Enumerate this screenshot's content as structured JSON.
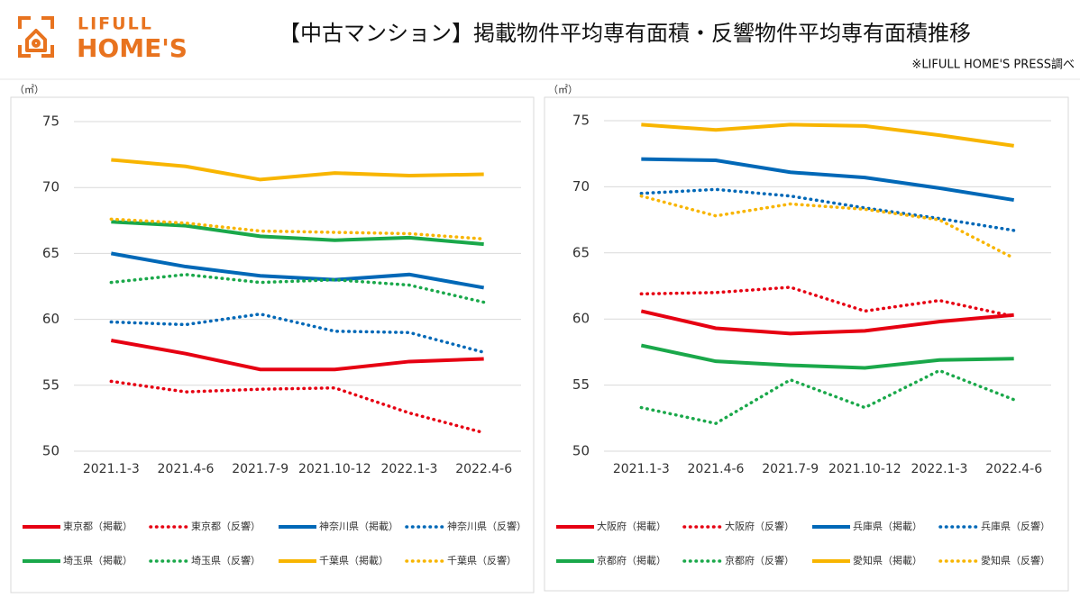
{
  "header": {
    "logo_top": "LIFULL",
    "logo_bottom": "HOME'S",
    "title": "【中古マンション】掲載物件平均専有面積・反響物件平均専有面積推移",
    "source": "※LIFULL HOME'S PRESS調べ"
  },
  "chart_data": [
    {
      "type": "line",
      "y_label": "（㎡）",
      "categories": [
        "2021.1-3",
        "2021.4-6",
        "2021.7-9",
        "2021.10-12",
        "2022.1-3",
        "2022.4-6"
      ],
      "ylim": [
        50,
        75
      ],
      "yticks": [
        50,
        55,
        60,
        65,
        70,
        75
      ],
      "grid": true,
      "series": [
        {
          "name": "東京都（掲載）",
          "color": "#e60012",
          "line_style": "solid",
          "values": [
            58.4,
            57.4,
            56.2,
            56.2,
            56.8,
            57.0
          ]
        },
        {
          "name": "東京都（反響）",
          "color": "#e60012",
          "line_style": "dotted",
          "values": [
            55.3,
            54.5,
            54.7,
            54.8,
            52.9,
            51.4
          ]
        },
        {
          "name": "神奈川県（掲載）",
          "color": "#0068b7",
          "line_style": "solid",
          "values": [
            65.0,
            64.0,
            63.3,
            63.0,
            63.4,
            62.4
          ]
        },
        {
          "name": "神奈川県（反響）",
          "color": "#0068b7",
          "line_style": "dotted",
          "values": [
            59.8,
            59.6,
            60.4,
            59.1,
            59.0,
            57.5
          ]
        },
        {
          "name": "埼玉県（掲載）",
          "color": "#1aa84a",
          "line_style": "solid",
          "values": [
            67.4,
            67.1,
            66.3,
            66.0,
            66.2,
            65.7
          ]
        },
        {
          "name": "埼玉県（反響）",
          "color": "#1aa84a",
          "line_style": "dotted",
          "values": [
            62.8,
            63.4,
            62.8,
            63.0,
            62.6,
            61.3
          ]
        },
        {
          "name": "千葉県（掲載）",
          "color": "#f8b500",
          "line_style": "solid",
          "values": [
            72.1,
            71.6,
            70.6,
            71.1,
            70.9,
            71.0
          ]
        },
        {
          "name": "千葉県（反響）",
          "color": "#f8b500",
          "line_style": "dotted",
          "values": [
            67.6,
            67.3,
            66.7,
            66.6,
            66.5,
            66.1
          ]
        }
      ]
    },
    {
      "type": "line",
      "y_label": "（㎡）",
      "categories": [
        "2021.1-3",
        "2021.4-6",
        "2021.7-9",
        "2021.10-12",
        "2022.1-3",
        "2022.4-6"
      ],
      "ylim": [
        50,
        75
      ],
      "yticks": [
        50,
        55,
        60,
        65,
        70,
        75
      ],
      "grid": true,
      "series": [
        {
          "name": "大阪府（掲載）",
          "color": "#e60012",
          "line_style": "solid",
          "values": [
            60.6,
            59.3,
            58.9,
            59.1,
            59.8,
            60.3
          ]
        },
        {
          "name": "大阪府（反響）",
          "color": "#e60012",
          "line_style": "dotted",
          "values": [
            61.9,
            62.0,
            62.4,
            60.6,
            61.4,
            60.2
          ]
        },
        {
          "name": "兵庫県（掲載）",
          "color": "#0068b7",
          "line_style": "solid",
          "values": [
            72.1,
            72.0,
            71.1,
            70.7,
            69.9,
            69.0
          ]
        },
        {
          "name": "兵庫県（反響）",
          "color": "#0068b7",
          "line_style": "dotted",
          "values": [
            69.5,
            69.8,
            69.3,
            68.4,
            67.6,
            66.7
          ]
        },
        {
          "name": "京都府（掲載）",
          "color": "#1aa84a",
          "line_style": "solid",
          "values": [
            58.0,
            56.8,
            56.5,
            56.3,
            56.9,
            57.0
          ]
        },
        {
          "name": "京都府（反響）",
          "color": "#1aa84a",
          "line_style": "dotted",
          "values": [
            53.3,
            52.1,
            55.4,
            53.3,
            56.1,
            53.9
          ]
        },
        {
          "name": "愛知県（掲載）",
          "color": "#f8b500",
          "line_style": "solid",
          "values": [
            74.7,
            74.3,
            74.7,
            74.6,
            73.9,
            73.1
          ]
        },
        {
          "name": "愛知県（反響）",
          "color": "#f8b500",
          "line_style": "dotted",
          "values": [
            69.3,
            67.8,
            68.7,
            68.3,
            67.5,
            64.6
          ]
        }
      ]
    }
  ]
}
